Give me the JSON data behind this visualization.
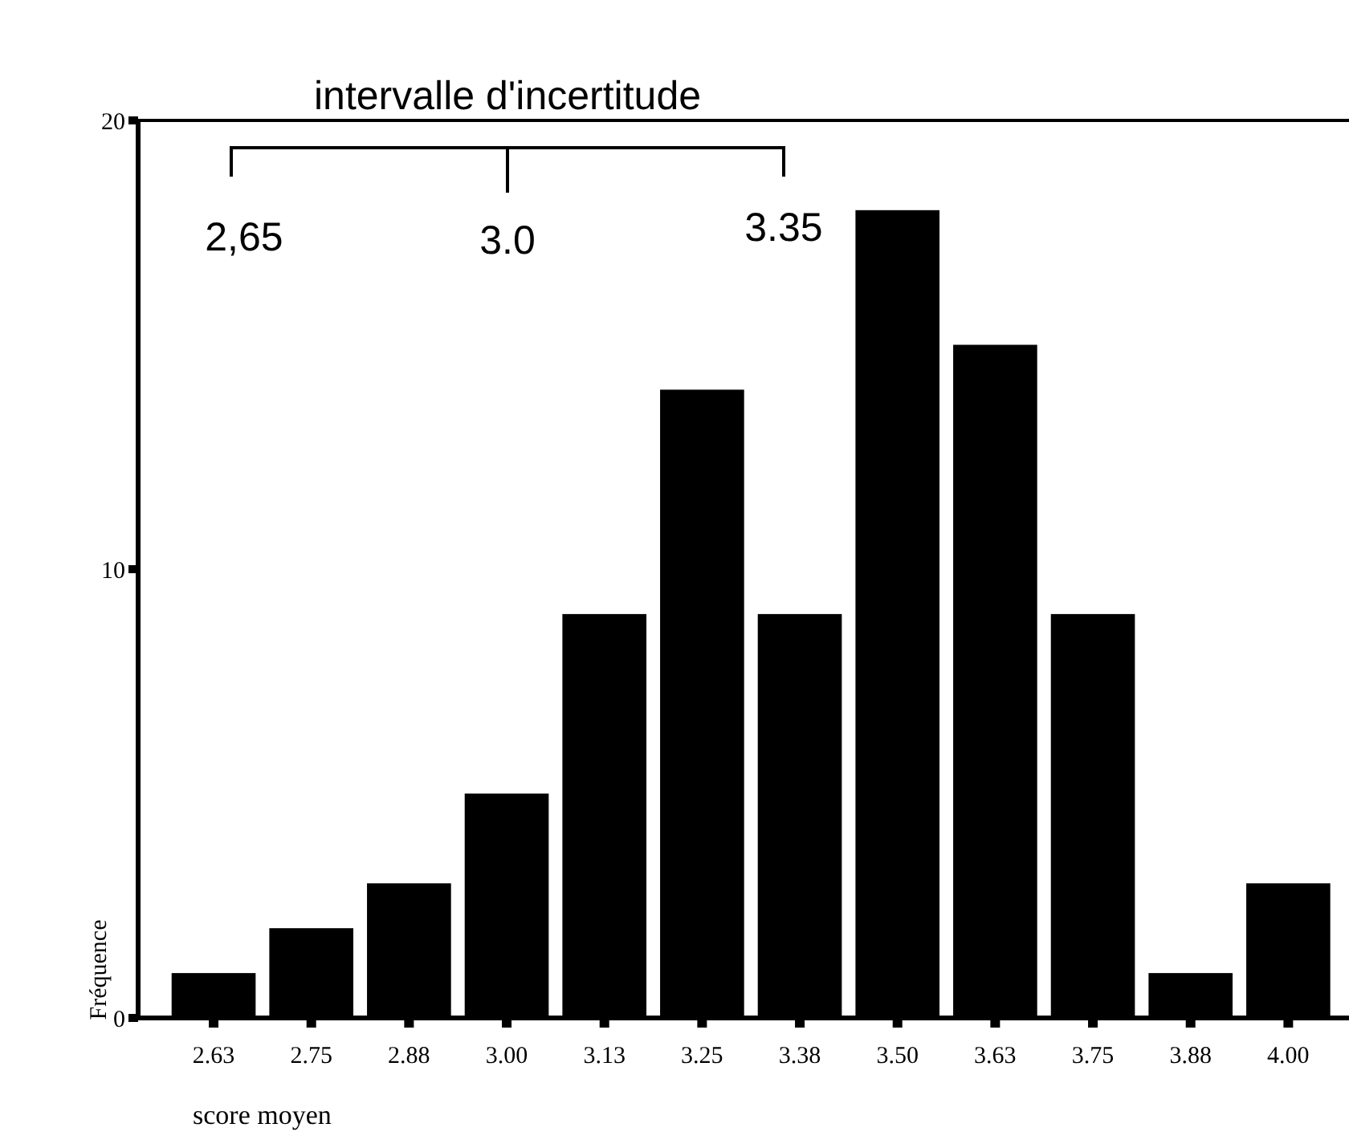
{
  "chart_data": {
    "type": "bar",
    "categories": [
      "2.63",
      "2.75",
      "2.88",
      "3.00",
      "3.13",
      "3.25",
      "3.38",
      "3.50",
      "3.63",
      "3.75",
      "3.88",
      "4.00"
    ],
    "values": [
      1,
      2,
      3,
      5,
      9,
      14,
      9,
      18,
      15,
      9,
      1,
      3
    ],
    "color": "#000000",
    "ylim": [
      0,
      20
    ],
    "yticks": [
      0,
      10,
      20
    ],
    "xlabel": "score moyen",
    "ylabel": "Fréquence",
    "annotations": [
      "intervalle d'incertitude",
      "2,65",
      "3.0",
      "3.35"
    ]
  }
}
